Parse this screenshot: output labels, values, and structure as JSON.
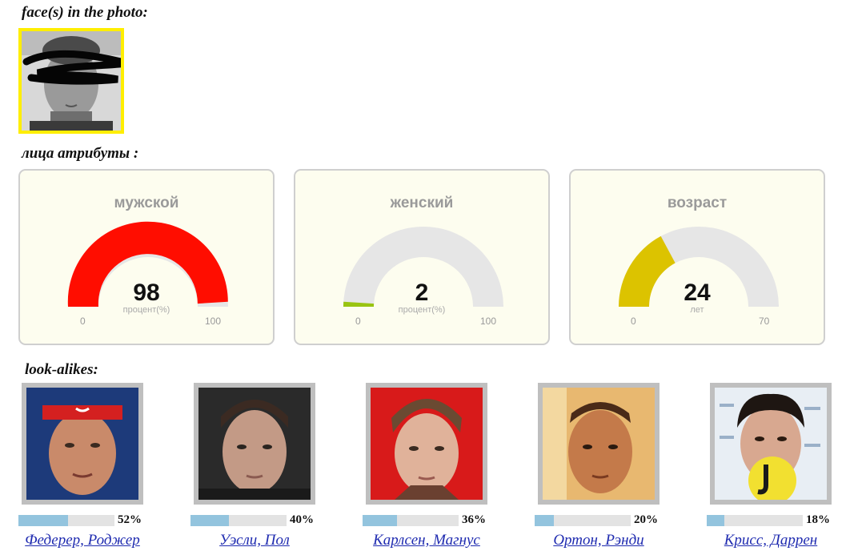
{
  "faces_section": {
    "title": "face(s) in the photo:"
  },
  "attributes_section": {
    "title": "лица атрибуты :"
  },
  "gauges": [
    {
      "title": "мужской",
      "value": "98",
      "unit": "процент(%)",
      "min": "0",
      "max": "100",
      "fraction": 0.98,
      "color": "#ff0d00"
    },
    {
      "title": "женский",
      "value": "2",
      "unit": "процент(%)",
      "min": "0",
      "max": "100",
      "fraction": 0.02,
      "color": "#99c411"
    },
    {
      "title": "возраст",
      "value": "24",
      "unit": "лет",
      "min": "0",
      "max": "70",
      "fraction": 0.343,
      "color": "#dcc300"
    }
  ],
  "lookalikes_section": {
    "title": "look-alikes:"
  },
  "lookalikes": [
    {
      "name": "Федерер, Роджер",
      "percent": "52%",
      "fraction": 0.52
    },
    {
      "name": "Уэсли, Пол",
      "percent": "40%",
      "fraction": 0.4
    },
    {
      "name": "Карлсен, Магнус",
      "percent": "36%",
      "fraction": 0.36
    },
    {
      "name": "Ортон, Рэнди",
      "percent": "20%",
      "fraction": 0.2
    },
    {
      "name": "Крисс, Даррен",
      "percent": "18%",
      "fraction": 0.18
    }
  ],
  "colors": {
    "face_border": "#ffee00",
    "bar_fill": "#93c4de",
    "bar_track": "#e3e3e3",
    "link": "#1f2bb0"
  }
}
